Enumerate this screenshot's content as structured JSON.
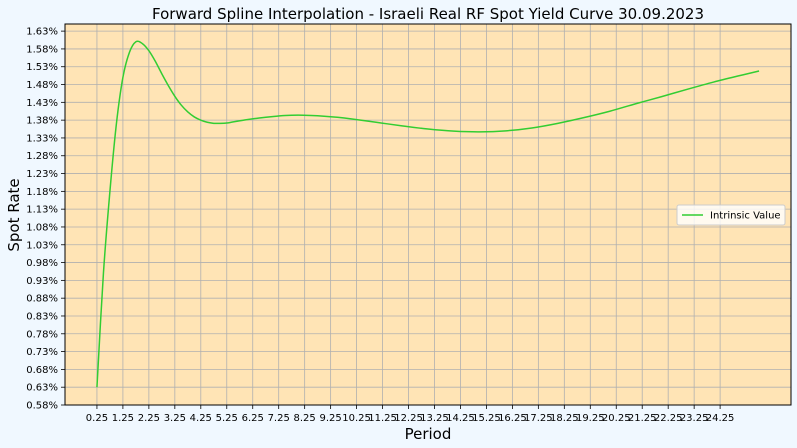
{
  "chart_data": {
    "type": "line",
    "title": "Forward Spline Interpolation - Israeli Real RF Spot Yield Curve 30.09.2023",
    "xlabel": "Period",
    "ylabel": "Spot Rate",
    "xlim": [
      -0.98,
      26.98
    ],
    "ylim": [
      0.58,
      1.65
    ],
    "grid": true,
    "legend_position": "center-right",
    "colors": {
      "background": "#f0f8ff",
      "plot_area": "#ffe4b5",
      "grid": "#b0b0b0",
      "line": "#32cd32"
    },
    "x_ticks": [
      0.25,
      1.25,
      2.25,
      3.25,
      4.25,
      5.25,
      6.25,
      7.25,
      8.25,
      9.25,
      10.25,
      11.25,
      12.25,
      13.25,
      14.25,
      15.25,
      16.25,
      17.25,
      18.25,
      19.25,
      20.25,
      21.25,
      22.25,
      23.25,
      24.25
    ],
    "y_ticks": [
      0.58,
      0.63,
      0.68,
      0.73,
      0.78,
      0.83,
      0.88,
      0.93,
      0.98,
      1.03,
      1.08,
      1.13,
      1.18,
      1.23,
      1.28,
      1.33,
      1.38,
      1.43,
      1.48,
      1.53,
      1.58,
      1.63
    ],
    "y_tick_labels": [
      "0.58%",
      "0.63%",
      "0.68%",
      "0.73%",
      "0.78%",
      "0.83%",
      "0.88%",
      "0.93%",
      "0.98%",
      "1.03%",
      "1.08%",
      "1.13%",
      "1.18%",
      "1.23%",
      "1.28%",
      "1.33%",
      "1.38%",
      "1.43%",
      "1.48%",
      "1.53%",
      "1.58%",
      "1.63%"
    ],
    "series": [
      {
        "name": "Intrinsic Value",
        "x": [
          0.25,
          0.5,
          0.75,
          1.0,
          1.25,
          1.5,
          1.75,
          2.0,
          2.25,
          2.5,
          2.75,
          3.0,
          3.25,
          3.5,
          3.75,
          4.0,
          4.25,
          4.5,
          4.75,
          5.0,
          5.25,
          5.5,
          6.0,
          6.5,
          7.0,
          7.5,
          8.0,
          8.5,
          9.0,
          9.5,
          10.0,
          11.0,
          12.0,
          13.0,
          14.0,
          15.0,
          16.0,
          17.0,
          18.0,
          19.0,
          20.0,
          21.0,
          22.0,
          23.0,
          24.0,
          25.0,
          25.75
        ],
        "y": [
          0.63,
          0.95,
          1.18,
          1.37,
          1.5,
          1.57,
          1.6,
          1.595,
          1.575,
          1.545,
          1.51,
          1.477,
          1.447,
          1.422,
          1.403,
          1.389,
          1.38,
          1.374,
          1.371,
          1.371,
          1.372,
          1.375,
          1.381,
          1.386,
          1.39,
          1.393,
          1.394,
          1.393,
          1.391,
          1.388,
          1.384,
          1.374,
          1.364,
          1.355,
          1.349,
          1.347,
          1.35,
          1.358,
          1.371,
          1.387,
          1.405,
          1.426,
          1.446,
          1.467,
          1.487,
          1.505,
          1.518
        ]
      }
    ]
  }
}
